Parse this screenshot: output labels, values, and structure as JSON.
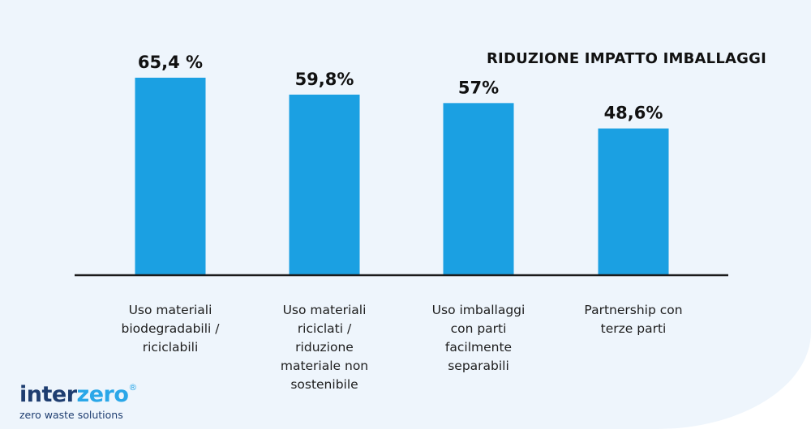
{
  "chart_data": {
    "type": "bar",
    "title": "RIDUZIONE IMPATTO IMBALLAGGI",
    "categories": [
      "Uso materiali\nbiodegradabili /\nriciclabili",
      "Uso materiali\nriciclati /\nriduzione\nmateriale non\nsostenibile",
      "Uso imballaggi\ncon parti\nfacilmente\nseparabili",
      "Partnership con\nterze parti"
    ],
    "values": [
      65.4,
      59.8,
      57,
      48.6
    ],
    "value_labels": [
      "65,4 %",
      "59,8%",
      "57%",
      "48,6%"
    ],
    "ylim": [
      0,
      70
    ],
    "grid": false,
    "bar_color": "#1ba0e2"
  },
  "logo": {
    "brand_part1": "inter",
    "brand_part2": "zero",
    "registered_mark": "®",
    "tagline": "zero waste solutions",
    "color_dark": "#1e3d70",
    "color_light": "#2aa7e8"
  }
}
